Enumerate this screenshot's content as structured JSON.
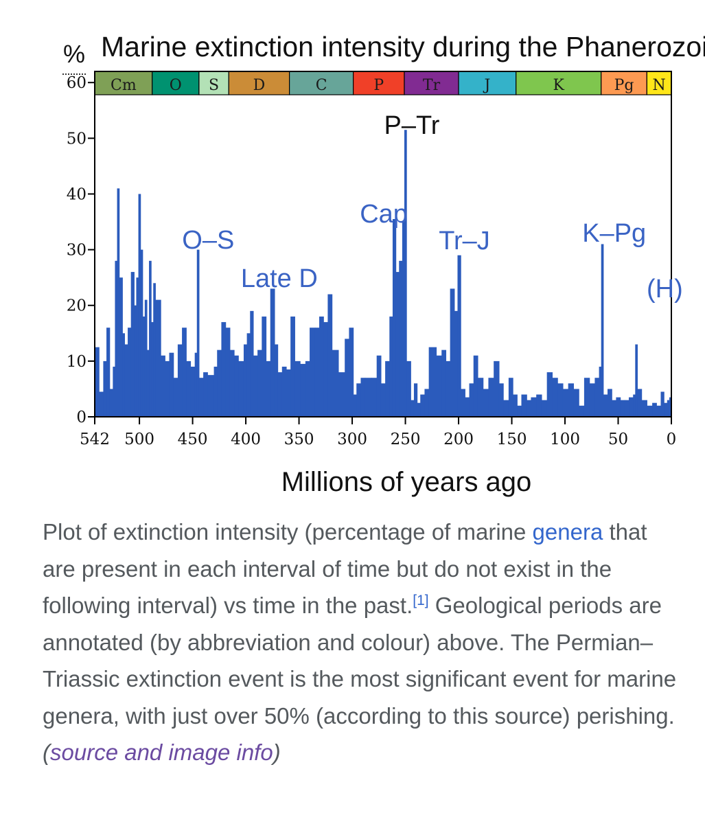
{
  "chart_data": {
    "type": "bar",
    "title": "Marine extinction intensity during the Phanerozoic",
    "ylabel": "%",
    "xlabel": "Millions of years ago",
    "ylim": [
      0,
      62
    ],
    "xlim": [
      542,
      0
    ],
    "y_ticks": [
      0,
      10,
      20,
      30,
      40,
      50,
      60
    ],
    "x_ticks": [
      542,
      500,
      450,
      400,
      350,
      300,
      250,
      200,
      150,
      100,
      50,
      0
    ],
    "periods": [
      {
        "label": "Cm",
        "start": 542,
        "end": 488,
        "color": "#7fa056"
      },
      {
        "label": "O",
        "start": 488,
        "end": 444,
        "color": "#009270"
      },
      {
        "label": "S",
        "start": 444,
        "end": 416,
        "color": "#b3e1b6"
      },
      {
        "label": "D",
        "start": 416,
        "end": 359,
        "color": "#cb8c37"
      },
      {
        "label": "C",
        "start": 359,
        "end": 299,
        "color": "#67a599"
      },
      {
        "label": "P",
        "start": 299,
        "end": 251,
        "color": "#f04028"
      },
      {
        "label": "Tr",
        "start": 251,
        "end": 200,
        "color": "#812b92"
      },
      {
        "label": "J",
        "start": 200,
        "end": 146,
        "color": "#34b2c9"
      },
      {
        "label": "K",
        "start": 146,
        "end": 66,
        "color": "#7fc64e"
      },
      {
        "label": "Pg",
        "start": 66,
        "end": 23,
        "color": "#fd9a52"
      },
      {
        "label": "N",
        "start": 23,
        "end": 0,
        "color": "#ffe619"
      }
    ],
    "events": [
      {
        "label": "O–S",
        "ma": 445
      },
      {
        "label": "Late D",
        "ma": 375
      },
      {
        "label": "Cap",
        "ma": 260
      },
      {
        "label": "P–Tr",
        "ma": 251
      },
      {
        "label": "Tr–J",
        "ma": 201
      },
      {
        "label": "K–Pg",
        "ma": 66
      },
      {
        "label": "(H)",
        "ma": 0
      }
    ],
    "series": [
      {
        "name": "Extinction intensity (%)",
        "points": [
          [
            542,
            12.5
          ],
          [
            538,
            4.5
          ],
          [
            534,
            10
          ],
          [
            531,
            16
          ],
          [
            528,
            5
          ],
          [
            525,
            9
          ],
          [
            523,
            28
          ],
          [
            521,
            41
          ],
          [
            519,
            25
          ],
          [
            516,
            15
          ],
          [
            514,
            13
          ],
          [
            511,
            16
          ],
          [
            508,
            26
          ],
          [
            505,
            20
          ],
          [
            503,
            25
          ],
          [
            501,
            40
          ],
          [
            499,
            30
          ],
          [
            497,
            18
          ],
          [
            495,
            21
          ],
          [
            493,
            12
          ],
          [
            491,
            28
          ],
          [
            489,
            17
          ],
          [
            487,
            24
          ],
          [
            485,
            21
          ],
          [
            480,
            11
          ],
          [
            476,
            10
          ],
          [
            472,
            11.5
          ],
          [
            468,
            7
          ],
          [
            464,
            13
          ],
          [
            460,
            16
          ],
          [
            456,
            10
          ],
          [
            452,
            9
          ],
          [
            448,
            11.5
          ],
          [
            446,
            30
          ],
          [
            444,
            7
          ],
          [
            440,
            8
          ],
          [
            436,
            7.5
          ],
          [
            430,
            9
          ],
          [
            427,
            12
          ],
          [
            423,
            17
          ],
          [
            419,
            16
          ],
          [
            415,
            12
          ],
          [
            411,
            11
          ],
          [
            407,
            10
          ],
          [
            402,
            13
          ],
          [
            399,
            15
          ],
          [
            396,
            19
          ],
          [
            393,
            11
          ],
          [
            389,
            12
          ],
          [
            385,
            18
          ],
          [
            381,
            10
          ],
          [
            377,
            23
          ],
          [
            373,
            13
          ],
          [
            370,
            8
          ],
          [
            366,
            9
          ],
          [
            362,
            8.5
          ],
          [
            358,
            18
          ],
          [
            354,
            10
          ],
          [
            349,
            9.5
          ],
          [
            344,
            10
          ],
          [
            340,
            16
          ],
          [
            335,
            16
          ],
          [
            331,
            18
          ],
          [
            327,
            17
          ],
          [
            323,
            22
          ],
          [
            319,
            12
          ],
          [
            313,
            8
          ],
          [
            307,
            14
          ],
          [
            303,
            16
          ],
          [
            299,
            4
          ],
          [
            296,
            6
          ],
          [
            292,
            7
          ],
          [
            288,
            7
          ],
          [
            282,
            7
          ],
          [
            277,
            11
          ],
          [
            273,
            6
          ],
          [
            269,
            10
          ],
          [
            265,
            18
          ],
          [
            262,
            35.5
          ],
          [
            259,
            26
          ],
          [
            256,
            28
          ],
          [
            253,
            35
          ],
          [
            251,
            51.5
          ],
          [
            249,
            10
          ],
          [
            245,
            3
          ],
          [
            242,
            6
          ],
          [
            239,
            2.5
          ],
          [
            236,
            4
          ],
          [
            232,
            5
          ],
          [
            228,
            12.5
          ],
          [
            221,
            11
          ],
          [
            216,
            12
          ],
          [
            212,
            10
          ],
          [
            208,
            23
          ],
          [
            204,
            19
          ],
          [
            201,
            29
          ],
          [
            198,
            5
          ],
          [
            194,
            3.5
          ],
          [
            190,
            6
          ],
          [
            186,
            11
          ],
          [
            182,
            7
          ],
          [
            177,
            5
          ],
          [
            172,
            7
          ],
          [
            167,
            10
          ],
          [
            162,
            6
          ],
          [
            158,
            3
          ],
          [
            153,
            7
          ],
          [
            149,
            4
          ],
          [
            145,
            2
          ],
          [
            141,
            4
          ],
          [
            136,
            3
          ],
          [
            132,
            3.5
          ],
          [
            127,
            4
          ],
          [
            122,
            3
          ],
          [
            117,
            8
          ],
          [
            112,
            7
          ],
          [
            107,
            6
          ],
          [
            102,
            5
          ],
          [
            97,
            6
          ],
          [
            92,
            5
          ],
          [
            87,
            2
          ],
          [
            82,
            7
          ],
          [
            77,
            6
          ],
          [
            72,
            7
          ],
          [
            68,
            9
          ],
          [
            66,
            31
          ],
          [
            64,
            4
          ],
          [
            60,
            5
          ],
          [
            56,
            3
          ],
          [
            52,
            3.5
          ],
          [
            48,
            3
          ],
          [
            44,
            3
          ],
          [
            40,
            3.5
          ],
          [
            36,
            4
          ],
          [
            34,
            13
          ],
          [
            32,
            5
          ],
          [
            28,
            3
          ],
          [
            23,
            2
          ],
          [
            18,
            2.5
          ],
          [
            14,
            2
          ],
          [
            10,
            4.5
          ],
          [
            7,
            2.5
          ],
          [
            4,
            3
          ],
          [
            2,
            3.5
          ],
          [
            0,
            1
          ]
        ]
      }
    ]
  },
  "caption": {
    "text_before_link": "Plot of extinction intensity (percentage of marine ",
    "link_genera": "genera",
    "text_after_link": " that are present in each interval of time but do not exist in the following interval) vs time in the past.",
    "footnote": "[1]",
    "text_rest": " Geological periods are annotated (by abbreviation and colour) above. The Permian–Triassic extinction event is the most significant event for marine genera, with just over 50% (according to this source) perishing. ",
    "paren_open": "(",
    "source_link": "source and image info",
    "paren_close": ")"
  },
  "colors": {
    "bar_fill": "#2b5bbc",
    "event_label": "#3a63c4",
    "axis": "#000000",
    "caption_text": "#54595d",
    "link": "#3366cc",
    "visited_link": "#6b4ba1"
  }
}
